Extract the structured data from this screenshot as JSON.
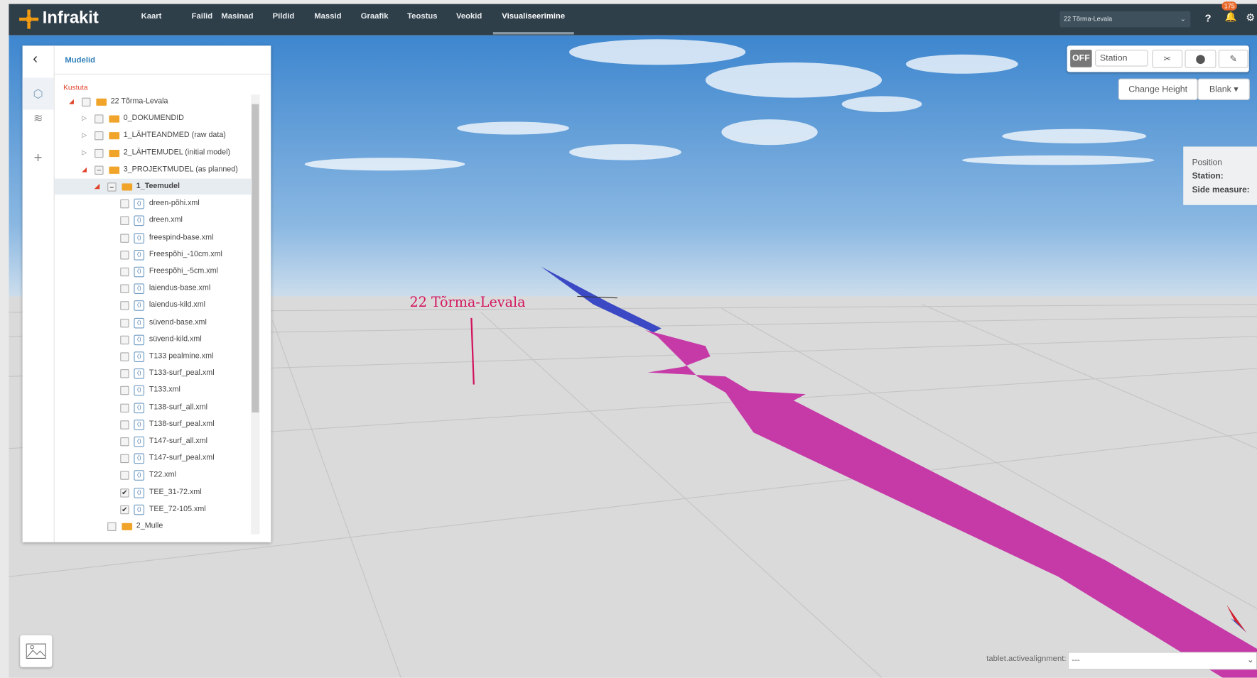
{
  "header": {
    "logo": "Infrakit",
    "nav": [
      "Kaart",
      "Failid",
      "Masinad",
      "Pildid",
      "Massid",
      "Graafik",
      "Teostus",
      "Veokid",
      "Visualiseerimine"
    ],
    "active_nav": 8,
    "project": "22 Tõrma-Levala",
    "badge": "175"
  },
  "sidebar": {
    "title": "Mudelid",
    "action": "Kustuta",
    "tree": [
      {
        "label": "22 Tõrma-Levala",
        "depth": 0,
        "folder": true,
        "expanded": true,
        "check": "none"
      },
      {
        "label": "0_DOKUMENDID",
        "depth": 1,
        "folder": true,
        "expanded": false,
        "check": "none"
      },
      {
        "label": "1_LÄHTEANDMED (raw data)",
        "depth": 1,
        "folder": true,
        "expanded": false,
        "check": "none"
      },
      {
        "label": "2_LÄHTEMUDEL (initial model)",
        "depth": 1,
        "folder": true,
        "expanded": false,
        "check": "none"
      },
      {
        "label": "3_PROJEKTMUDEL (as planned)",
        "depth": 1,
        "folder": true,
        "expanded": true,
        "check": "partial"
      },
      {
        "label": "1_Teemudel",
        "depth": 2,
        "folder": true,
        "expanded": true,
        "check": "partial"
      },
      {
        "label": "dreen-põhi.xml",
        "depth": 3,
        "folder": false,
        "check": "none"
      },
      {
        "label": "dreen.xml",
        "depth": 3,
        "folder": false,
        "check": "none"
      },
      {
        "label": "freespind-base.xml",
        "depth": 3,
        "folder": false,
        "check": "none"
      },
      {
        "label": "Freespõhi_-10cm.xml",
        "depth": 3,
        "folder": false,
        "check": "none"
      },
      {
        "label": "Freespõhi_-5cm.xml",
        "depth": 3,
        "folder": false,
        "check": "none"
      },
      {
        "label": "laiendus-base.xml",
        "depth": 3,
        "folder": false,
        "check": "none"
      },
      {
        "label": "laiendus-kild.xml",
        "depth": 3,
        "folder": false,
        "check": "none"
      },
      {
        "label": "süvend-base.xml",
        "depth": 3,
        "folder": false,
        "check": "none"
      },
      {
        "label": "süvend-kild.xml",
        "depth": 3,
        "folder": false,
        "check": "none"
      },
      {
        "label": "T133 pealmine.xml",
        "depth": 3,
        "folder": false,
        "check": "none"
      },
      {
        "label": "T133-surf_peal.xml",
        "depth": 3,
        "folder": false,
        "check": "none"
      },
      {
        "label": "T133.xml",
        "depth": 3,
        "folder": false,
        "check": "none"
      },
      {
        "label": "T138-surf_all.xml",
        "depth": 3,
        "folder": false,
        "check": "none"
      },
      {
        "label": "T138-surf_peal.xml",
        "depth": 3,
        "folder": false,
        "check": "none"
      },
      {
        "label": "T147-surf_all.xml",
        "depth": 3,
        "folder": false,
        "check": "none"
      },
      {
        "label": "T147-surf_peal.xml",
        "depth": 3,
        "folder": false,
        "check": "none"
      },
      {
        "label": "T22.xml",
        "depth": 3,
        "folder": false,
        "check": "none"
      },
      {
        "label": "TEE_31-72.xml",
        "depth": 3,
        "folder": false,
        "check": "checked"
      },
      {
        "label": "TEE_72-105.xml",
        "depth": 3,
        "folder": false,
        "check": "checked"
      },
      {
        "label": "2_Mulle",
        "depth": 2,
        "folder": true,
        "check": "none"
      }
    ]
  },
  "scene": {
    "label": "22 Tõrma-Levala"
  },
  "toolbar": {
    "toggle": "OFF",
    "station": "Station",
    "change_height": "Change Height",
    "blank": "Blank"
  },
  "position": {
    "title": "Position",
    "station": "Station:",
    "side": "Side measure:"
  },
  "footer": {
    "label": "tablet.activealignment:",
    "value": "---"
  }
}
